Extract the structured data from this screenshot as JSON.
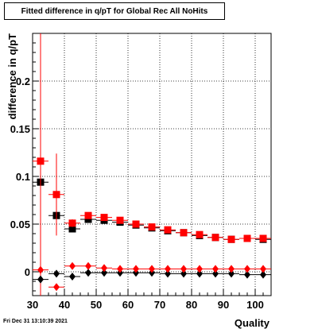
{
  "chart_data": {
    "type": "scatter",
    "title": "Fitted difference in q/pT for Global Rec All NoHits",
    "xlabel": "Quality",
    "ylabel": "difference in q/pT",
    "xlim": [
      30,
      105
    ],
    "ylim": [
      -0.025,
      0.25
    ],
    "xticks": [
      30,
      40,
      50,
      60,
      70,
      80,
      90,
      100
    ],
    "yticks": [
      0,
      0.05,
      0.1,
      0.15,
      0.2
    ],
    "ytick_labels": [
      "0",
      "0.05",
      "0.1",
      "0.15",
      "0.2"
    ],
    "grid": true,
    "series": [
      {
        "marker": "square",
        "color": "#000000",
        "x": [
          32.5,
          37.5,
          42.5,
          47.5,
          52.5,
          57.5,
          62.5,
          67.5,
          72.5,
          77.5,
          82.5,
          87.5,
          92.5,
          97.5,
          102.5
        ],
        "y": [
          0.094,
          0.059,
          0.045,
          0.055,
          0.054,
          0.052,
          0.049,
          0.046,
          0.043,
          0.041,
          0.038,
          0.036,
          0.034,
          0.035,
          0.034
        ],
        "yerr": [
          0.004,
          0.004,
          0.003,
          0.002,
          0.002,
          0.002,
          0.002,
          0.001,
          0.001,
          0.001,
          0.001,
          0.001,
          0.001,
          0.001,
          0.001
        ]
      },
      {
        "marker": "square",
        "color": "#ff0000",
        "x": [
          32.5,
          37.5,
          42.5,
          47.5,
          52.5,
          57.5,
          62.5,
          67.5,
          72.5,
          77.5,
          82.5,
          87.5,
          92.5,
          97.5,
          102.5
        ],
        "y": [
          0.116,
          0.081,
          0.051,
          0.059,
          0.057,
          0.054,
          0.05,
          0.047,
          0.044,
          0.041,
          0.039,
          0.036,
          0.034,
          0.035,
          0.035
        ],
        "yerr": [
          0.15,
          0.043,
          0.004,
          0.003,
          0.002,
          0.002,
          0.002,
          0.001,
          0.001,
          0.001,
          0.001,
          0.001,
          0.001,
          0.001,
          0.001
        ]
      },
      {
        "marker": "diamond",
        "color": "#000000",
        "x": [
          32.5,
          37.5,
          42.5,
          47.5,
          52.5,
          57.5,
          62.5,
          67.5,
          72.5,
          77.5,
          82.5,
          87.5,
          92.5,
          97.5,
          102.5
        ],
        "y": [
          -0.008,
          -0.002,
          -0.005,
          -0.001,
          -0.001,
          -0.001,
          -0.001,
          -0.001,
          -0.002,
          -0.002,
          -0.002,
          -0.002,
          -0.002,
          -0.003,
          -0.003
        ],
        "yerr": [
          0.002,
          0.002,
          0.001,
          0.001,
          0.001,
          0.001,
          0.001,
          0.001,
          0.001,
          0.001,
          0.001,
          0.001,
          0.001,
          0.001,
          0.001
        ]
      },
      {
        "marker": "diamond",
        "color": "#ff0000",
        "x": [
          32.5,
          37.5,
          42.5,
          47.5,
          52.5,
          57.5,
          62.5,
          67.5,
          72.5,
          77.5,
          82.5,
          87.5,
          92.5,
          97.5,
          102.5
        ],
        "y": [
          0.002,
          -0.016,
          0.006,
          0.006,
          0.004,
          0.003,
          0.003,
          0.003,
          0.003,
          0.003,
          0.003,
          0.003,
          0.003,
          0.003,
          0.003
        ],
        "yerr": [
          0.002,
          0.002,
          0.001,
          0.001,
          0.001,
          0.001,
          0.001,
          0.001,
          0.001,
          0.001,
          0.001,
          0.001,
          0.001,
          0.001,
          0.001
        ]
      }
    ]
  },
  "footer_timestamp": "Fri Dec 31 13:10:39 2021"
}
